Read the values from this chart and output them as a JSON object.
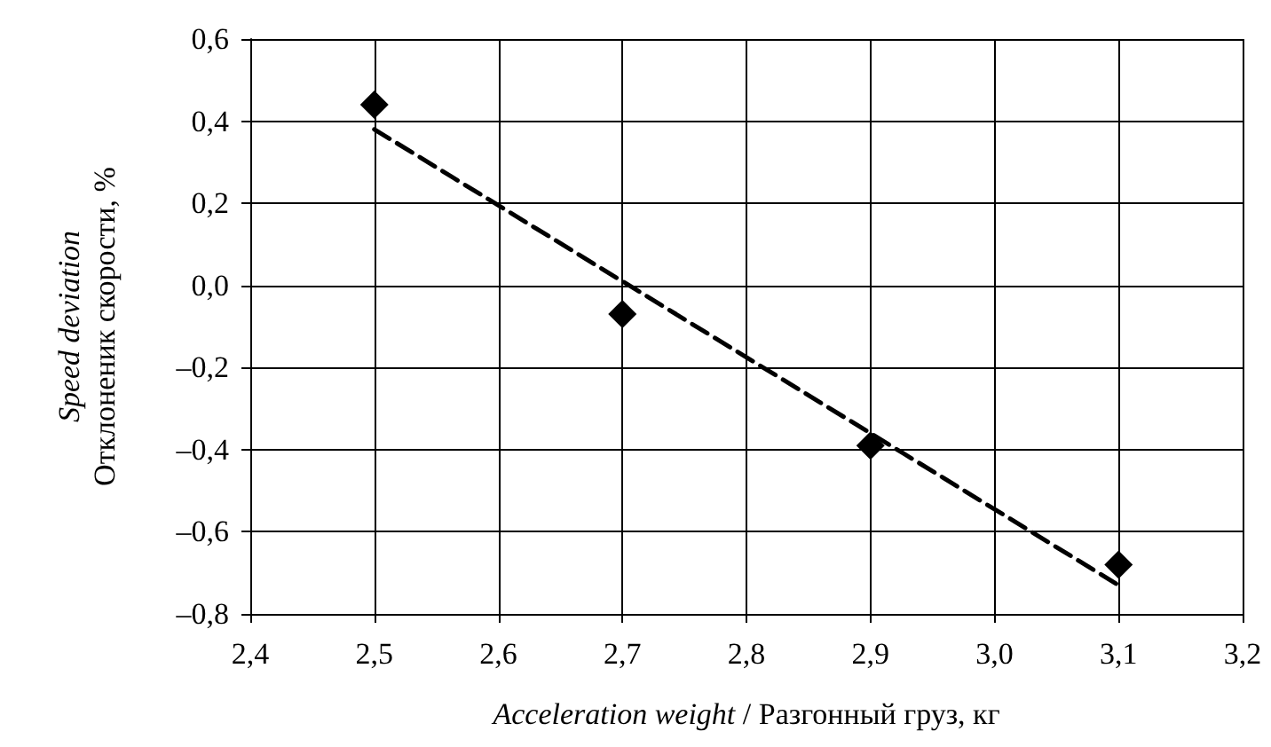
{
  "chart_data": {
    "type": "scatter",
    "xlabel": "Acceleration weight / Разгонный груз, кг",
    "ylabel": "Speed deviation\nОтклоненик скорости, %",
    "x": [
      2.5,
      2.7,
      2.9,
      3.1
    ],
    "series": [
      {
        "color": "#000000",
        "marker": "diamond",
        "values": [
          0.44,
          -0.07,
          -0.39,
          -0.68
        ]
      },
      {
        "type": "line",
        "color": "#000000",
        "line_style": "dashed",
        "marker": "none",
        "x": [
          2.5,
          3.1
        ],
        "values": [
          0.38,
          -0.73
        ]
      }
    ],
    "xlim": [
      2.4,
      3.2
    ],
    "xticks": [
      {
        "value": 2.4,
        "label": "2,4"
      },
      {
        "value": 2.5,
        "label": "2,5"
      },
      {
        "value": 2.6,
        "label": "2,6"
      },
      {
        "value": 2.7,
        "label": "2,7"
      },
      {
        "value": 2.8,
        "label": "2,8"
      },
      {
        "value": 2.9,
        "label": "2,9"
      },
      {
        "value": 3.0,
        "label": "3,0"
      },
      {
        "value": 3.1,
        "label": "3,1"
      },
      {
        "value": 3.2,
        "label": "3,2"
      }
    ],
    "ylim": [
      -0.8,
      0.6
    ],
    "yticks": [
      {
        "value": -0.8,
        "label": "–0,8"
      },
      {
        "value": -0.6,
        "label": "–0,6"
      },
      {
        "value": -0.4,
        "label": "–0,4"
      },
      {
        "value": -0.2,
        "label": "–0,2"
      },
      {
        "value": 0,
        "label": "0,0"
      },
      {
        "value": 0.2,
        "label": "0,2"
      },
      {
        "value": 0.4,
        "label": "0,4"
      },
      {
        "value": 0.6,
        "label": "0,6"
      }
    ],
    "grid": true
  }
}
